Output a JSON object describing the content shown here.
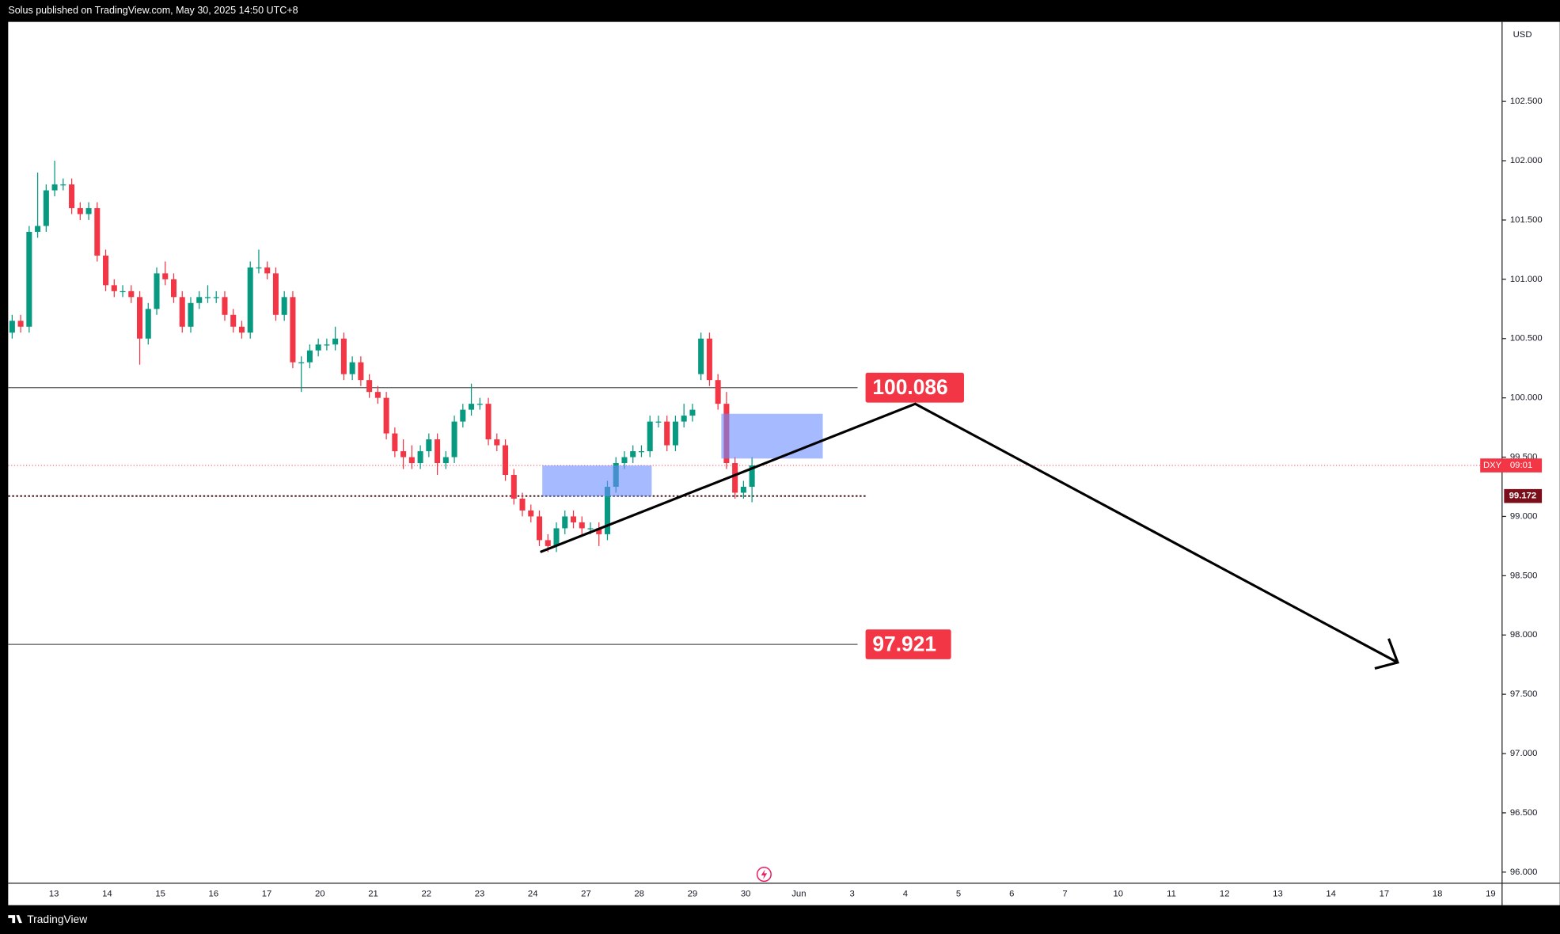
{
  "header": {
    "text": "Solus published on TradingView.com, May 30, 2025 14:50 UTC+8"
  },
  "footer": {
    "brand": "TradingView"
  },
  "chart_data": {
    "type": "candlestick",
    "currency": "USD",
    "symbol": "DXY",
    "countdown": "09:01",
    "up_color": "#089981",
    "down_color": "#f23645",
    "candles": [
      [
        100.55,
        100.7,
        100.5,
        100.65
      ],
      [
        100.65,
        100.7,
        100.55,
        100.6
      ],
      [
        100.6,
        101.45,
        100.55,
        101.4
      ],
      [
        101.4,
        101.9,
        101.35,
        101.45
      ],
      [
        101.45,
        101.8,
        101.4,
        101.75
      ],
      [
        101.75,
        102.0,
        101.7,
        101.8
      ],
      [
        101.8,
        101.85,
        101.75,
        101.8
      ],
      [
        101.8,
        101.85,
        101.55,
        101.6
      ],
      [
        101.6,
        101.65,
        101.5,
        101.55
      ],
      [
        101.55,
        101.65,
        101.5,
        101.6
      ],
      [
        101.6,
        101.65,
        101.15,
        101.2
      ],
      [
        101.2,
        101.25,
        100.9,
        100.95
      ],
      [
        100.95,
        101.0,
        100.85,
        100.9
      ],
      [
        100.9,
        100.95,
        100.85,
        100.9
      ],
      [
        100.9,
        100.95,
        100.8,
        100.85
      ],
      [
        100.85,
        100.9,
        100.28,
        100.5
      ],
      [
        100.5,
        100.8,
        100.45,
        100.75
      ],
      [
        100.75,
        101.1,
        100.7,
        101.05
      ],
      [
        101.05,
        101.15,
        100.95,
        101.0
      ],
      [
        101.0,
        101.05,
        100.8,
        100.85
      ],
      [
        100.85,
        100.9,
        100.55,
        100.6
      ],
      [
        100.6,
        100.85,
        100.55,
        100.8
      ],
      [
        100.8,
        100.9,
        100.75,
        100.85
      ],
      [
        100.85,
        100.95,
        100.8,
        100.85
      ],
      [
        100.85,
        100.9,
        100.8,
        100.85
      ],
      [
        100.85,
        100.9,
        100.65,
        100.7
      ],
      [
        100.7,
        100.75,
        100.55,
        100.6
      ],
      [
        100.6,
        100.65,
        100.5,
        100.55
      ],
      [
        100.55,
        101.15,
        100.5,
        101.1
      ],
      [
        101.1,
        101.25,
        101.05,
        101.1
      ],
      [
        101.1,
        101.15,
        101.0,
        101.05
      ],
      [
        101.05,
        101.1,
        100.65,
        100.7
      ],
      [
        100.7,
        100.9,
        100.65,
        100.85
      ],
      [
        100.85,
        100.9,
        100.25,
        100.3
      ],
      [
        100.3,
        100.35,
        100.05,
        100.3
      ],
      [
        100.3,
        100.45,
        100.25,
        100.4
      ],
      [
        100.4,
        100.5,
        100.35,
        100.45
      ],
      [
        100.45,
        100.5,
        100.4,
        100.45
      ],
      [
        100.45,
        100.6,
        100.4,
        100.5
      ],
      [
        100.5,
        100.55,
        100.15,
        100.2
      ],
      [
        100.2,
        100.35,
        100.15,
        100.3
      ],
      [
        100.3,
        100.35,
        100.1,
        100.15
      ],
      [
        100.15,
        100.2,
        100.0,
        100.05
      ],
      [
        100.05,
        100.1,
        99.95,
        100.0
      ],
      [
        100.0,
        100.05,
        99.65,
        99.7
      ],
      [
        99.7,
        99.75,
        99.5,
        99.55
      ],
      [
        99.55,
        99.65,
        99.4,
        99.5
      ],
      [
        99.5,
        99.6,
        99.4,
        99.45
      ],
      [
        99.45,
        99.6,
        99.4,
        99.55
      ],
      [
        99.55,
        99.7,
        99.5,
        99.65
      ],
      [
        99.65,
        99.7,
        99.35,
        99.45
      ],
      [
        99.45,
        99.55,
        99.4,
        99.5
      ],
      [
        99.5,
        99.85,
        99.45,
        99.8
      ],
      [
        99.8,
        99.95,
        99.75,
        99.9
      ],
      [
        99.9,
        100.12,
        99.85,
        99.95
      ],
      [
        99.95,
        100.0,
        99.9,
        99.95
      ],
      [
        99.95,
        100.0,
        99.6,
        99.65
      ],
      [
        99.65,
        99.7,
        99.55,
        99.6
      ],
      [
        99.6,
        99.65,
        99.3,
        99.35
      ],
      [
        99.35,
        99.4,
        99.1,
        99.15
      ],
      [
        99.15,
        99.2,
        99.0,
        99.05
      ],
      [
        99.05,
        99.1,
        98.95,
        99.0
      ],
      [
        99.0,
        99.05,
        98.75,
        98.8
      ],
      [
        98.8,
        98.85,
        98.7,
        98.75
      ],
      [
        98.75,
        98.95,
        98.7,
        98.9
      ],
      [
        98.9,
        99.05,
        98.85,
        99.0
      ],
      [
        99.0,
        99.05,
        98.9,
        98.95
      ],
      [
        98.95,
        99.0,
        98.85,
        98.9
      ],
      [
        98.9,
        98.95,
        98.85,
        98.9
      ],
      [
        98.9,
        98.95,
        98.75,
        98.85
      ],
      [
        98.85,
        99.3,
        98.8,
        99.25
      ],
      [
        99.25,
        99.5,
        99.2,
        99.45
      ],
      [
        99.45,
        99.55,
        99.4,
        99.5
      ],
      [
        99.5,
        99.6,
        99.45,
        99.55
      ],
      [
        99.55,
        99.6,
        99.5,
        99.55
      ],
      [
        99.55,
        99.85,
        99.5,
        99.8
      ],
      [
        99.8,
        99.85,
        99.75,
        99.8
      ],
      [
        99.8,
        99.85,
        99.55,
        99.6
      ],
      [
        99.6,
        99.85,
        99.55,
        99.8
      ],
      [
        99.8,
        99.95,
        99.75,
        99.85
      ],
      [
        99.85,
        99.95,
        99.8,
        99.9
      ],
      [
        100.2,
        100.55,
        100.15,
        100.5
      ],
      [
        100.5,
        100.55,
        100.1,
        100.15
      ],
      [
        100.15,
        100.2,
        99.9,
        99.95
      ],
      [
        99.95,
        100.05,
        99.4,
        99.45
      ],
      [
        99.45,
        99.5,
        99.15,
        99.2
      ],
      [
        99.2,
        99.3,
        99.15,
        99.25
      ],
      [
        99.25,
        99.5,
        99.12,
        99.43
      ]
    ],
    "ylim": [
      95.906,
      103.171
    ],
    "yticks": [
      {
        "value": 96,
        "label": "96.000"
      },
      {
        "value": 96.5,
        "label": "96.500"
      },
      {
        "value": 97,
        "label": "97.000"
      },
      {
        "value": 97.5,
        "label": "97.500"
      },
      {
        "value": 98,
        "label": "98.000"
      },
      {
        "value": 98.5,
        "label": "98.500"
      },
      {
        "value": 99,
        "label": "99.000"
      },
      {
        "value": 99.5,
        "label": "99.500"
      },
      {
        "value": 100,
        "label": "100.000"
      },
      {
        "value": 100.5,
        "label": "100.500"
      },
      {
        "value": 101,
        "label": "101.000"
      },
      {
        "value": 101.5,
        "label": "101.500"
      },
      {
        "value": 102,
        "label": "102.000"
      },
      {
        "value": 102.5,
        "label": "102.500"
      }
    ],
    "xtick_labels": [
      "13",
      "14",
      "15",
      "16",
      "17",
      "20",
      "21",
      "22",
      "23",
      "24",
      "27",
      "28",
      "29",
      "30",
      "Jun",
      "3",
      "4",
      "5",
      "6",
      "7",
      "10",
      "11",
      "12",
      "13",
      "14",
      "17",
      "18",
      "19"
    ],
    "levels": [
      100.086,
      97.921
    ],
    "marker_level": 99.172
  }
}
